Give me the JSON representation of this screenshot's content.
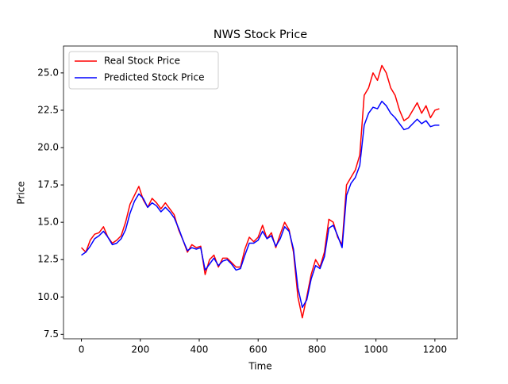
{
  "chart_data": {
    "type": "line",
    "title": "NWS Stock Price",
    "xlabel": "Time",
    "ylabel": "Price",
    "x": [
      0,
      15,
      30,
      45,
      60,
      75,
      90,
      105,
      120,
      135,
      150,
      165,
      180,
      195,
      210,
      225,
      240,
      255,
      270,
      285,
      300,
      315,
      330,
      345,
      360,
      375,
      390,
      405,
      420,
      435,
      450,
      465,
      480,
      495,
      510,
      525,
      540,
      555,
      570,
      585,
      600,
      615,
      630,
      645,
      660,
      675,
      690,
      705,
      720,
      735,
      750,
      765,
      780,
      795,
      810,
      825,
      840,
      855,
      870,
      885,
      900,
      915,
      930,
      945,
      960,
      975,
      990,
      1005,
      1020,
      1035,
      1050,
      1065,
      1080,
      1095,
      1110,
      1125,
      1140,
      1155,
      1170,
      1185,
      1200,
      1215
    ],
    "series": [
      {
        "name": "Real Stock Price",
        "color": "#ff0000",
        "values": [
          13.3,
          13.0,
          13.8,
          14.2,
          14.3,
          14.7,
          14.0,
          13.6,
          13.8,
          14.1,
          15.0,
          16.2,
          16.8,
          17.4,
          16.5,
          16.0,
          16.6,
          16.3,
          15.9,
          16.3,
          15.9,
          15.5,
          14.5,
          13.8,
          13.0,
          13.5,
          13.3,
          13.4,
          11.5,
          12.5,
          12.8,
          12.0,
          12.6,
          12.6,
          12.3,
          12.0,
          12.0,
          13.2,
          14.0,
          13.7,
          14.0,
          14.8,
          13.9,
          14.3,
          13.3,
          14.2,
          15.0,
          14.5,
          13.0,
          10.0,
          8.6,
          10.0,
          11.5,
          12.5,
          12.0,
          13.0,
          15.2,
          15.0,
          14.0,
          13.5,
          17.5,
          18.0,
          18.5,
          19.5,
          23.5,
          24.0,
          25.0,
          24.5,
          25.5,
          25.0,
          24.0,
          23.5,
          22.5,
          21.8,
          22.0,
          22.5,
          23.0,
          22.3,
          22.8,
          22.0,
          22.5,
          22.6
        ]
      },
      {
        "name": "Predicted Stock Price",
        "color": "#0000ff",
        "values": [
          12.8,
          13.0,
          13.4,
          13.9,
          14.1,
          14.4,
          14.0,
          13.5,
          13.6,
          13.9,
          14.5,
          15.6,
          16.4,
          16.9,
          16.6,
          16.0,
          16.3,
          16.1,
          15.7,
          16.0,
          15.7,
          15.3,
          14.6,
          13.8,
          13.1,
          13.3,
          13.2,
          13.3,
          11.8,
          12.2,
          12.6,
          12.1,
          12.4,
          12.5,
          12.2,
          11.8,
          11.9,
          12.8,
          13.6,
          13.6,
          13.8,
          14.4,
          13.9,
          14.1,
          13.4,
          13.9,
          14.7,
          14.4,
          13.2,
          10.6,
          9.3,
          9.8,
          11.2,
          12.1,
          11.9,
          12.7,
          14.6,
          14.8,
          14.1,
          13.3,
          16.8,
          17.6,
          18.0,
          18.8,
          21.5,
          22.3,
          22.7,
          22.6,
          23.1,
          22.8,
          22.3,
          22.0,
          21.6,
          21.2,
          21.3,
          21.6,
          21.9,
          21.6,
          21.8,
          21.4,
          21.5,
          21.5
        ]
      }
    ],
    "xlim": [
      -60.75,
      1275.75
    ],
    "ylim": [
      7.2,
      26.8
    ],
    "xticks": [
      0,
      200,
      400,
      600,
      800,
      1000,
      1200
    ],
    "yticks": [
      7.5,
      {
        "value": 10,
        "label": "10.0"
      },
      12.5,
      {
        "value": 15,
        "label": "15.0"
      },
      17.5,
      {
        "value": 20,
        "label": "20.0"
      },
      22.5,
      {
        "value": 25,
        "label": "25.0"
      }
    ],
    "legend": "upper left"
  }
}
